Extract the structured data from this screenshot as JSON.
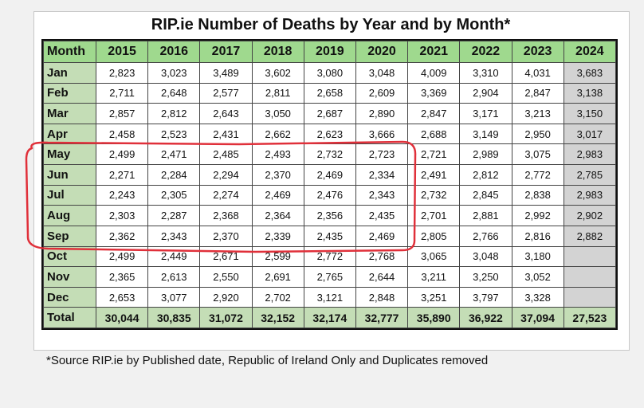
{
  "title": "RIP.ie Number of  Deaths by Year and by Month*",
  "source_note": "*Source RIP.ie by Published date, Republic of Ireland Only and Duplicates removed",
  "colors": {
    "header_green": "#9fd98e",
    "month_green": "#c4ddb6",
    "col2024_grey": "#d3d3d3",
    "highlight_red": "#e0303a"
  },
  "chart_data": {
    "type": "table",
    "header": [
      "Month",
      "2015",
      "2016",
      "2017",
      "2018",
      "2019",
      "2020",
      "2021",
      "2022",
      "2023",
      "2024"
    ],
    "rows": [
      {
        "month": "Jan",
        "values": [
          "2,823",
          "3,023",
          "3,489",
          "3,602",
          "3,080",
          "3,048",
          "4,009",
          "3,310",
          "4,031",
          "3,683"
        ]
      },
      {
        "month": "Feb",
        "values": [
          "2,711",
          "2,648",
          "2,577",
          "2,811",
          "2,658",
          "2,609",
          "3,369",
          "2,904",
          "2,847",
          "3,138"
        ]
      },
      {
        "month": "Mar",
        "values": [
          "2,857",
          "2,812",
          "2,643",
          "3,050",
          "2,687",
          "2,890",
          "2,847",
          "3,171",
          "3,213",
          "3,150"
        ]
      },
      {
        "month": "Apr",
        "values": [
          "2,458",
          "2,523",
          "2,431",
          "2,662",
          "2,623",
          "3,666",
          "2,688",
          "3,149",
          "2,950",
          "3,017"
        ]
      },
      {
        "month": "May",
        "values": [
          "2,499",
          "2,471",
          "2,485",
          "2,493",
          "2,732",
          "2,723",
          "2,721",
          "2,989",
          "3,075",
          "2,983"
        ]
      },
      {
        "month": "Jun",
        "values": [
          "2,271",
          "2,284",
          "2,294",
          "2,370",
          "2,469",
          "2,334",
          "2,491",
          "2,812",
          "2,772",
          "2,785"
        ]
      },
      {
        "month": "Jul",
        "values": [
          "2,243",
          "2,305",
          "2,274",
          "2,469",
          "2,476",
          "2,343",
          "2,732",
          "2,845",
          "2,838",
          "2,983"
        ]
      },
      {
        "month": "Aug",
        "values": [
          "2,303",
          "2,287",
          "2,368",
          "2,364",
          "2,356",
          "2,435",
          "2,701",
          "2,881",
          "2,992",
          "2,902"
        ]
      },
      {
        "month": "Sep",
        "values": [
          "2,362",
          "2,343",
          "2,370",
          "2,339",
          "2,435",
          "2,469",
          "2,805",
          "2,766",
          "2,816",
          "2,882"
        ]
      },
      {
        "month": "Oct",
        "values": [
          "2,499",
          "2,449",
          "2,671",
          "2,599",
          "2,772",
          "2,768",
          "3,065",
          "3,048",
          "3,180",
          ""
        ]
      },
      {
        "month": "Nov",
        "values": [
          "2,365",
          "2,613",
          "2,550",
          "2,691",
          "2,765",
          "2,644",
          "3,211",
          "3,250",
          "3,052",
          ""
        ]
      },
      {
        "month": "Dec",
        "values": [
          "2,653",
          "3,077",
          "2,920",
          "2,702",
          "3,121",
          "2,848",
          "3,251",
          "3,797",
          "3,328",
          ""
        ]
      }
    ],
    "total": {
      "month": "Total",
      "values": [
        "30,044",
        "30,835",
        "31,072",
        "32,152",
        "32,174",
        "32,777",
        "35,890",
        "36,922",
        "37,094",
        "27,523"
      ]
    },
    "highlight": {
      "rows": [
        "May",
        "Jun",
        "Jul",
        "Aug",
        "Sep"
      ],
      "columns": [
        "2015",
        "2016",
        "2017",
        "2018",
        "2019",
        "2020"
      ]
    }
  }
}
